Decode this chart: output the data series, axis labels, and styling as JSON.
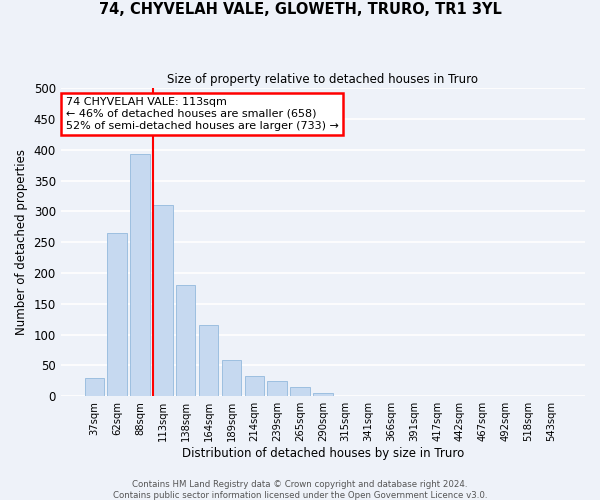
{
  "title": "74, CHYVELAH VALE, GLOWETH, TRURO, TR1 3YL",
  "subtitle": "Size of property relative to detached houses in Truro",
  "xlabel": "Distribution of detached houses by size in Truro",
  "ylabel": "Number of detached properties",
  "bin_labels": [
    "37sqm",
    "62sqm",
    "88sqm",
    "113sqm",
    "138sqm",
    "164sqm",
    "189sqm",
    "214sqm",
    "239sqm",
    "265sqm",
    "290sqm",
    "315sqm",
    "341sqm",
    "366sqm",
    "391sqm",
    "417sqm",
    "442sqm",
    "467sqm",
    "492sqm",
    "518sqm",
    "543sqm"
  ],
  "bar_values": [
    30,
    265,
    393,
    310,
    180,
    115,
    58,
    32,
    25,
    15,
    5,
    1,
    0,
    0,
    0,
    0,
    0,
    0,
    0,
    0,
    1
  ],
  "bar_color": "#c6d9f0",
  "bar_edge_color": "#9dbfe0",
  "red_line_index": 3,
  "annotation_line1": "74 CHYVELAH VALE: 113sqm",
  "annotation_line2": "← 46% of detached houses are smaller (658)",
  "annotation_line3": "52% of semi-detached houses are larger (733) →",
  "annotation_box_color": "white",
  "annotation_box_edge_color": "red",
  "ylim": [
    0,
    500
  ],
  "yticks": [
    0,
    50,
    100,
    150,
    200,
    250,
    300,
    350,
    400,
    450,
    500
  ],
  "footer_line1": "Contains HM Land Registry data © Crown copyright and database right 2024.",
  "footer_line2": "Contains public sector information licensed under the Open Government Licence v3.0.",
  "background_color": "#eef2f9",
  "grid_color": "white"
}
